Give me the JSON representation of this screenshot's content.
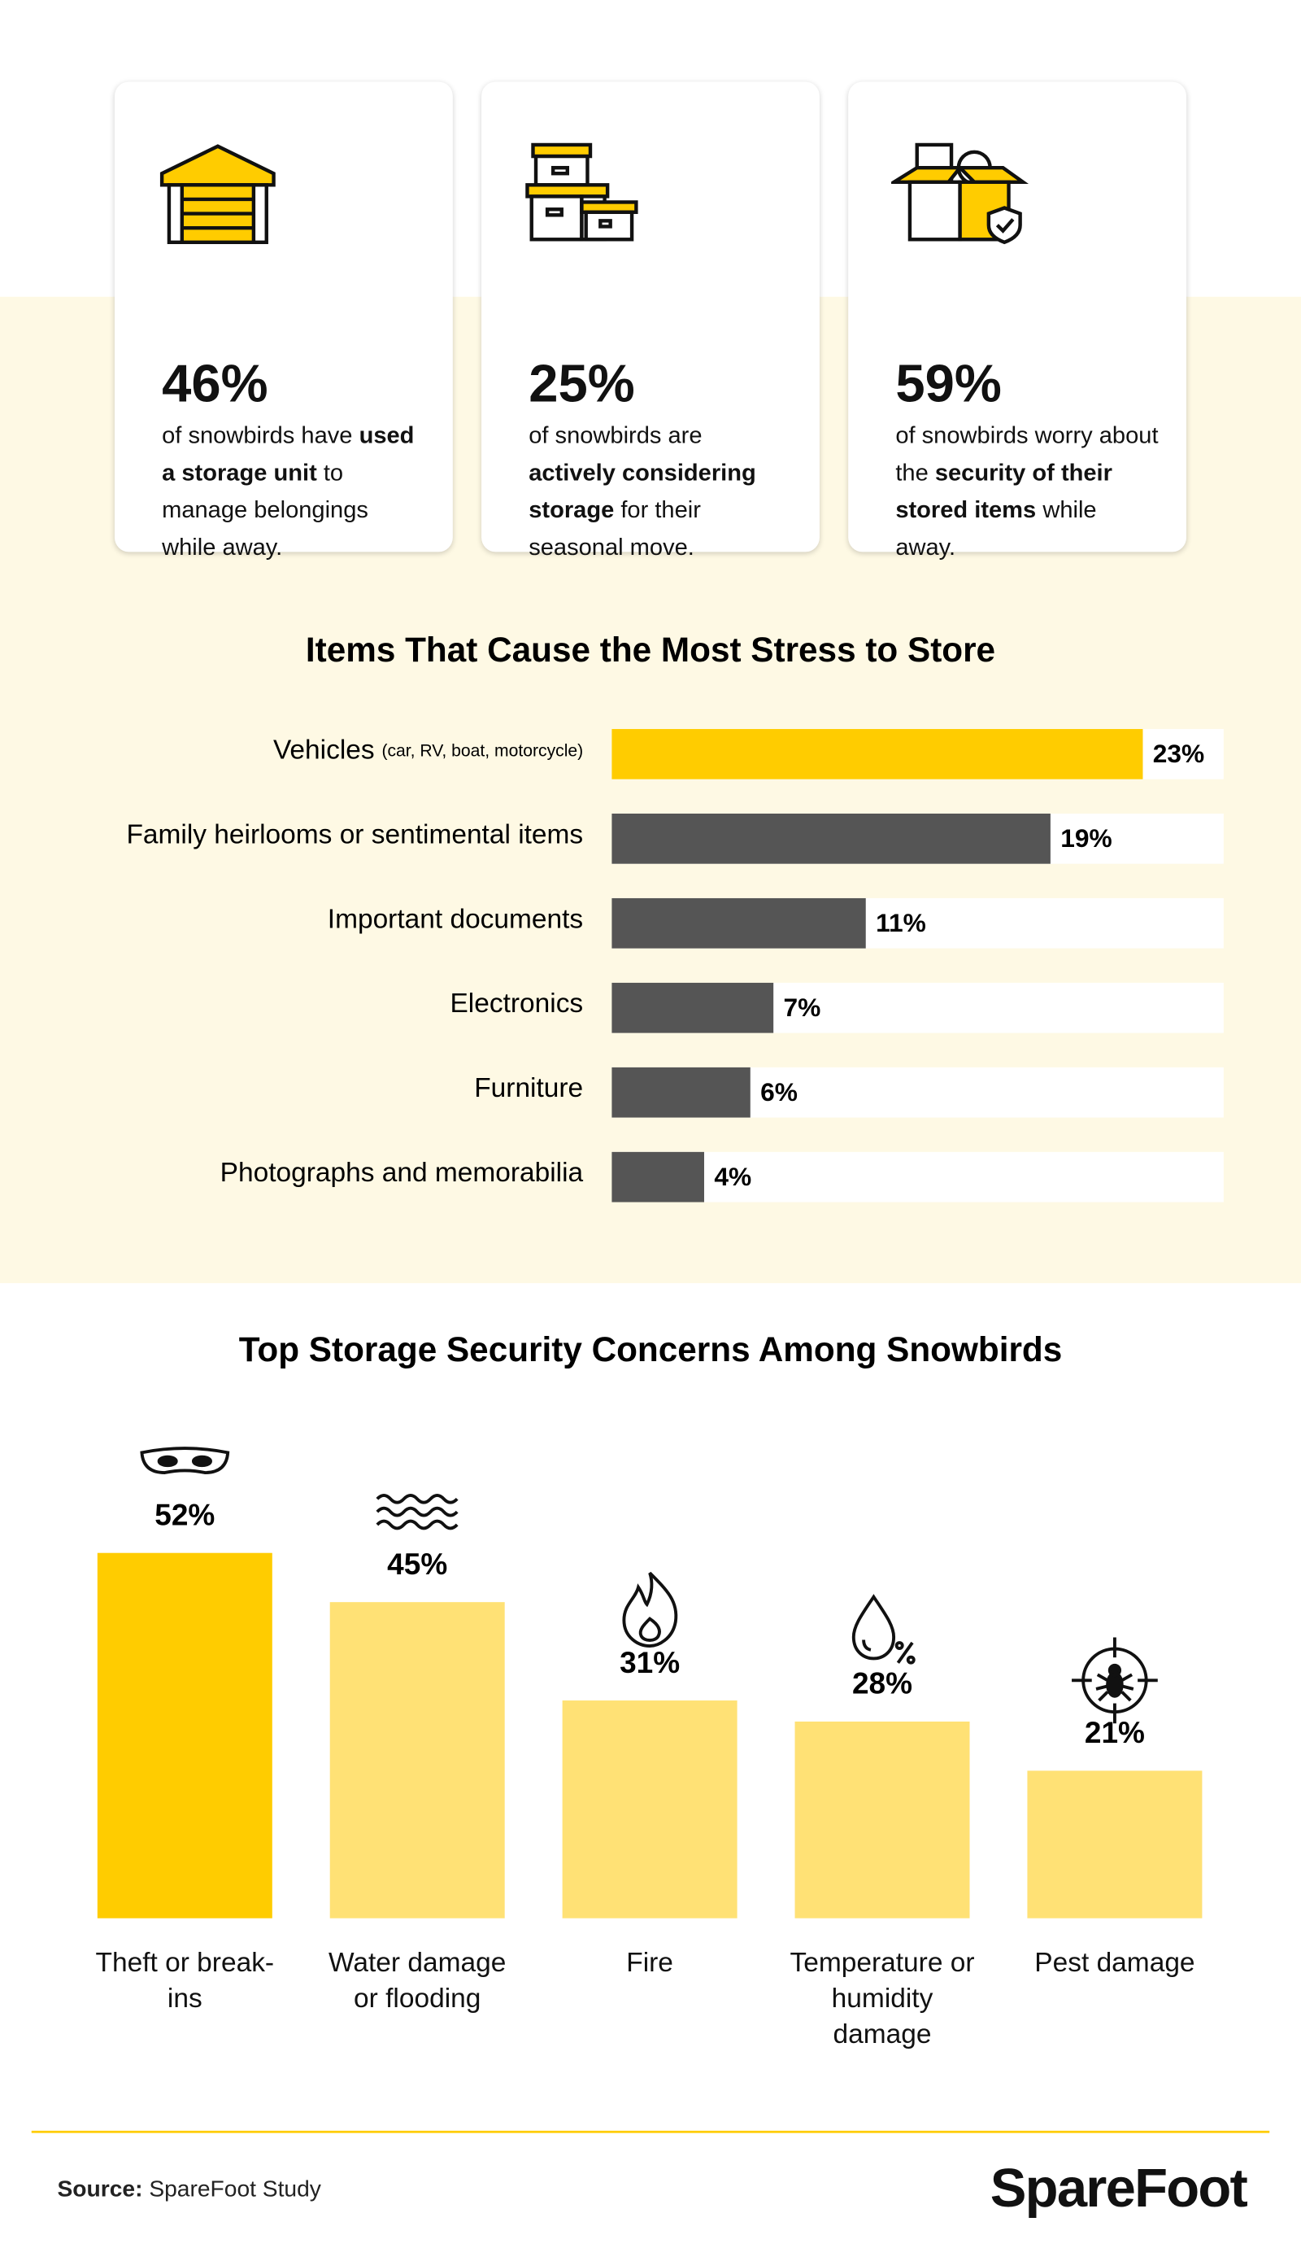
{
  "stats": [
    {
      "value": "46%",
      "text_before": "of snowbirds have",
      "text_bold": "used a storage unit",
      "text_after": "to manage belongings while away."
    },
    {
      "value": "25%",
      "text_before": "of snowbirds are",
      "text_bold": "actively considering storage",
      "text_after": "for their seasonal move."
    },
    {
      "value": "59%",
      "text_before": "of snowbirds worry about the",
      "text_bold": "security of their stored items",
      "text_after": "while away."
    }
  ],
  "chart_data": [
    {
      "type": "hbar",
      "title": "Items That Cause the Most Stress to Store",
      "categories": [
        "Vehicles",
        "Family heirlooms or sentimental items",
        "Important documents",
        "Electronics",
        "Furniture",
        "Photographs and memorabilia"
      ],
      "category_notes": [
        "(car, RV, boat, motorcycle)",
        null,
        null,
        null,
        null,
        null
      ],
      "values": [
        23,
        19,
        11,
        7,
        6,
        4
      ],
      "value_labels": [
        "23%",
        "19%",
        "11%",
        "7%",
        "6%",
        "4%"
      ],
      "colors": [
        "#ffcc00",
        "#555555",
        "#555555",
        "#555555",
        "#555555",
        "#555555"
      ],
      "xlim": [
        0,
        26.5
      ]
    },
    {
      "type": "bar",
      "title": "Top Storage Security Concerns Among Snowbirds",
      "categories": [
        "Theft or break-ins",
        "Water damage or flooding",
        "Fire",
        "Temperature or humidity damage",
        "Pest damage"
      ],
      "values": [
        52,
        45,
        31,
        28,
        21
      ],
      "value_labels": [
        "52%",
        "45%",
        "31%",
        "28%",
        "21%"
      ],
      "colors": [
        "#ffcc00",
        "#ffe175",
        "#ffe175",
        "#ffe175",
        "#ffe175"
      ],
      "ylim": [
        0,
        60
      ]
    }
  ],
  "source_label": "Source:",
  "source": "SpareFoot Study",
  "logo": "SpareFoot"
}
